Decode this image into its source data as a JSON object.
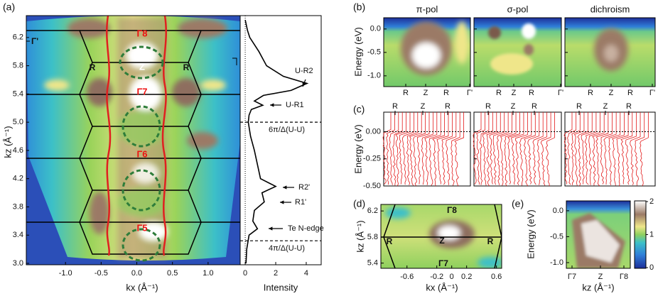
{
  "figure": {
    "a": {
      "label": "(a)",
      "xlabel": "kx (Å⁻¹)",
      "ylabel": "kz (Å⁻¹)",
      "xlim": [
        -1.55,
        1.45
      ],
      "ylim": [
        2.98,
        6.51
      ],
      "xticks": [
        {
          "value": -1,
          "label": "-1.0"
        },
        -0.5,
        {
          "value": 0,
          "label": "0.0"
        },
        0.5,
        {
          "value": 1,
          "label": "1.0"
        }
      ],
      "yticks": [
        {
          "value": 3,
          "label": "3.0"
        },
        3.4,
        3.8,
        4.2,
        4.6,
        {
          "value": 5,
          "label": "5.0"
        },
        5.4,
        5.8,
        6.2
      ],
      "point_labels": [
        "Γ8",
        "Γ7",
        "Γ6",
        "Γ5",
        "Z",
        "R",
        "R",
        "Γ'"
      ],
      "intensity": {
        "xlabel": "Intensity",
        "xlim": [
          -0.33,
          4.98
        ],
        "xticks": [
          0,
          2,
          4
        ],
        "kz": [
          6.45,
          6.3,
          6.2,
          6.0,
          5.8,
          5.65,
          5.55,
          5.45,
          5.38,
          5.3,
          5.24,
          5.18,
          5.1,
          5.0,
          4.8,
          4.6,
          4.4,
          4.2,
          4.09,
          4.0,
          3.87,
          3.75,
          3.6,
          3.49,
          3.4,
          3.2,
          3.0
        ],
        "values": [
          0,
          0.15,
          0.3,
          0.9,
          1.4,
          2.5,
          4.05,
          3.0,
          1.2,
          0.6,
          1.15,
          0.4,
          0.25,
          0.2,
          0.35,
          0.6,
          0.8,
          1.0,
          2.0,
          1.1,
          1.25,
          0.6,
          0.5,
          0.8,
          0.25,
          0.1,
          0.05
        ],
        "guides": [
          {
            "kz": 5.0,
            "label": "6π/Δ(U-U)"
          },
          {
            "kz": 3.32,
            "label": "4π/Δ(U-U)"
          }
        ],
        "annotations": [
          "U-R2",
          "U-R1",
          "R2'",
          "R1'",
          "Te N-edge"
        ]
      }
    },
    "b": {
      "label": "(b)",
      "ylabel": "Energy (eV)",
      "ylim": [
        -1.23,
        0.24
      ],
      "yticks": [
        {
          "value": 0,
          "label": "0.0"
        },
        -0.5,
        {
          "value": -1,
          "label": "-1.0"
        }
      ],
      "titles": [
        "π-pol",
        "σ-pol",
        "dichroism"
      ],
      "k_labels": [
        [
          "R",
          "Z",
          "R",
          "Γ'"
        ],
        [
          "R",
          "Z",
          "R",
          "Γ'"
        ],
        [
          "R",
          "Z",
          "R",
          "Γ'"
        ]
      ]
    },
    "c": {
      "label": "(c)",
      "ylabel": "Energy (eV)",
      "ylim": [
        -0.5,
        0.18
      ],
      "yticks": [
        {
          "value": 0,
          "label": "0.00"
        },
        {
          "value": -0.25,
          "label": "-0.25"
        },
        {
          "value": -0.5,
          "label": "-0.50"
        }
      ],
      "k_labels": [
        [
          "R",
          "Z",
          "R"
        ],
        [
          "R",
          "Z",
          "R"
        ],
        [
          "R",
          "Z",
          "R"
        ]
      ]
    },
    "d": {
      "label": "(d)",
      "xlabel": "kx (Å⁻¹)",
      "ylabel": "kz (Å⁻¹)",
      "xlim": [
        -0.95,
        0.67
      ],
      "ylim": [
        5.32,
        6.3
      ],
      "xticks": [
        -0.6,
        -0.2,
        0,
        0.2,
        0.6
      ],
      "yticks": [
        5.4,
        5.8,
        6.2
      ],
      "point_labels": [
        "Γ8",
        "Z",
        "Γ7",
        "R",
        "R"
      ]
    },
    "e": {
      "label": "(e)",
      "ylabel": "Energy (eV)",
      "xlabel": "kz (Å⁻¹)",
      "ylim": [
        -1.11,
        0.19
      ],
      "yticks": [
        {
          "value": 0,
          "label": "0.0"
        },
        -0.5,
        {
          "value": -1,
          "label": "-1.0"
        }
      ],
      "x_labels": [
        "Γ7",
        "Z",
        "Γ8"
      ],
      "colorbar": {
        "lim": [
          0,
          2
        ],
        "ticks": [
          0,
          1,
          2
        ]
      }
    }
  }
}
